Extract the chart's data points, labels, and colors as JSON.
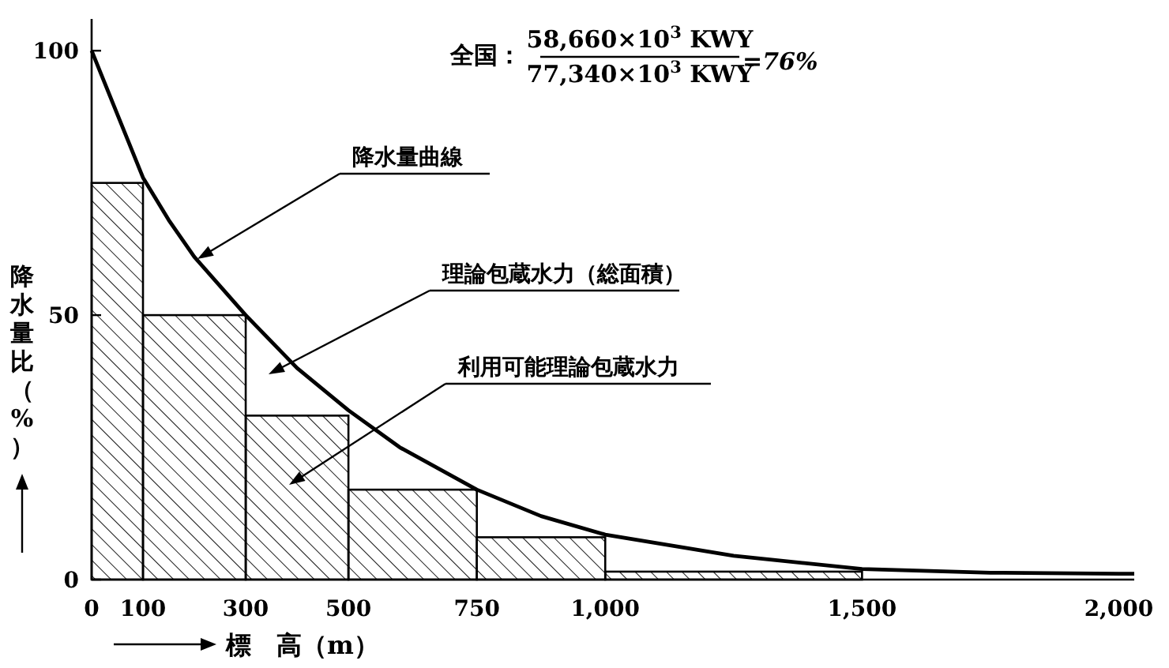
{
  "chart_data": {
    "type": "line",
    "xlabel": "標　高（m）",
    "ylabel": "降水量比（%）",
    "annotations": [
      "全国：",
      "58,660×10$^{3}$ KWY",
      "77,340×10$^{3}$ KWY",
      "=76%",
      "降水量曲線",
      "理論包蔵水力（総面積）",
      "利用可能理論包蔵水力"
    ],
    "xlim": [
      0,
      2030
    ],
    "ylim": [
      0,
      106
    ],
    "xticks": [
      0,
      100,
      300,
      500,
      750,
      {
        "value": 1000,
        "label": "1,000"
      },
      {
        "value": 1500,
        "label": "1,500"
      },
      {
        "value": 2000,
        "label": "2,000"
      }
    ],
    "yticks": [
      0,
      50,
      100
    ],
    "grid": false,
    "series": [
      {
        "type": "histogram",
        "color": "#000000",
        "bins": [
          0,
          100,
          300,
          500,
          750,
          1000,
          1500
        ],
        "values": [
          75,
          50,
          31,
          17,
          8,
          1.5
        ]
      },
      {
        "color": "#000000",
        "x": [
          0,
          25,
          50,
          100,
          150,
          200,
          300,
          400,
          500,
          600,
          750,
          875,
          1000,
          1250,
          1500,
          1750,
          2000,
          2030
        ],
        "values": [
          100,
          94,
          88,
          76,
          68,
          61,
          50,
          40,
          32,
          25,
          17,
          12,
          8.5,
          4.5,
          2,
          1.3,
          1.1,
          1.1
        ]
      }
    ]
  }
}
